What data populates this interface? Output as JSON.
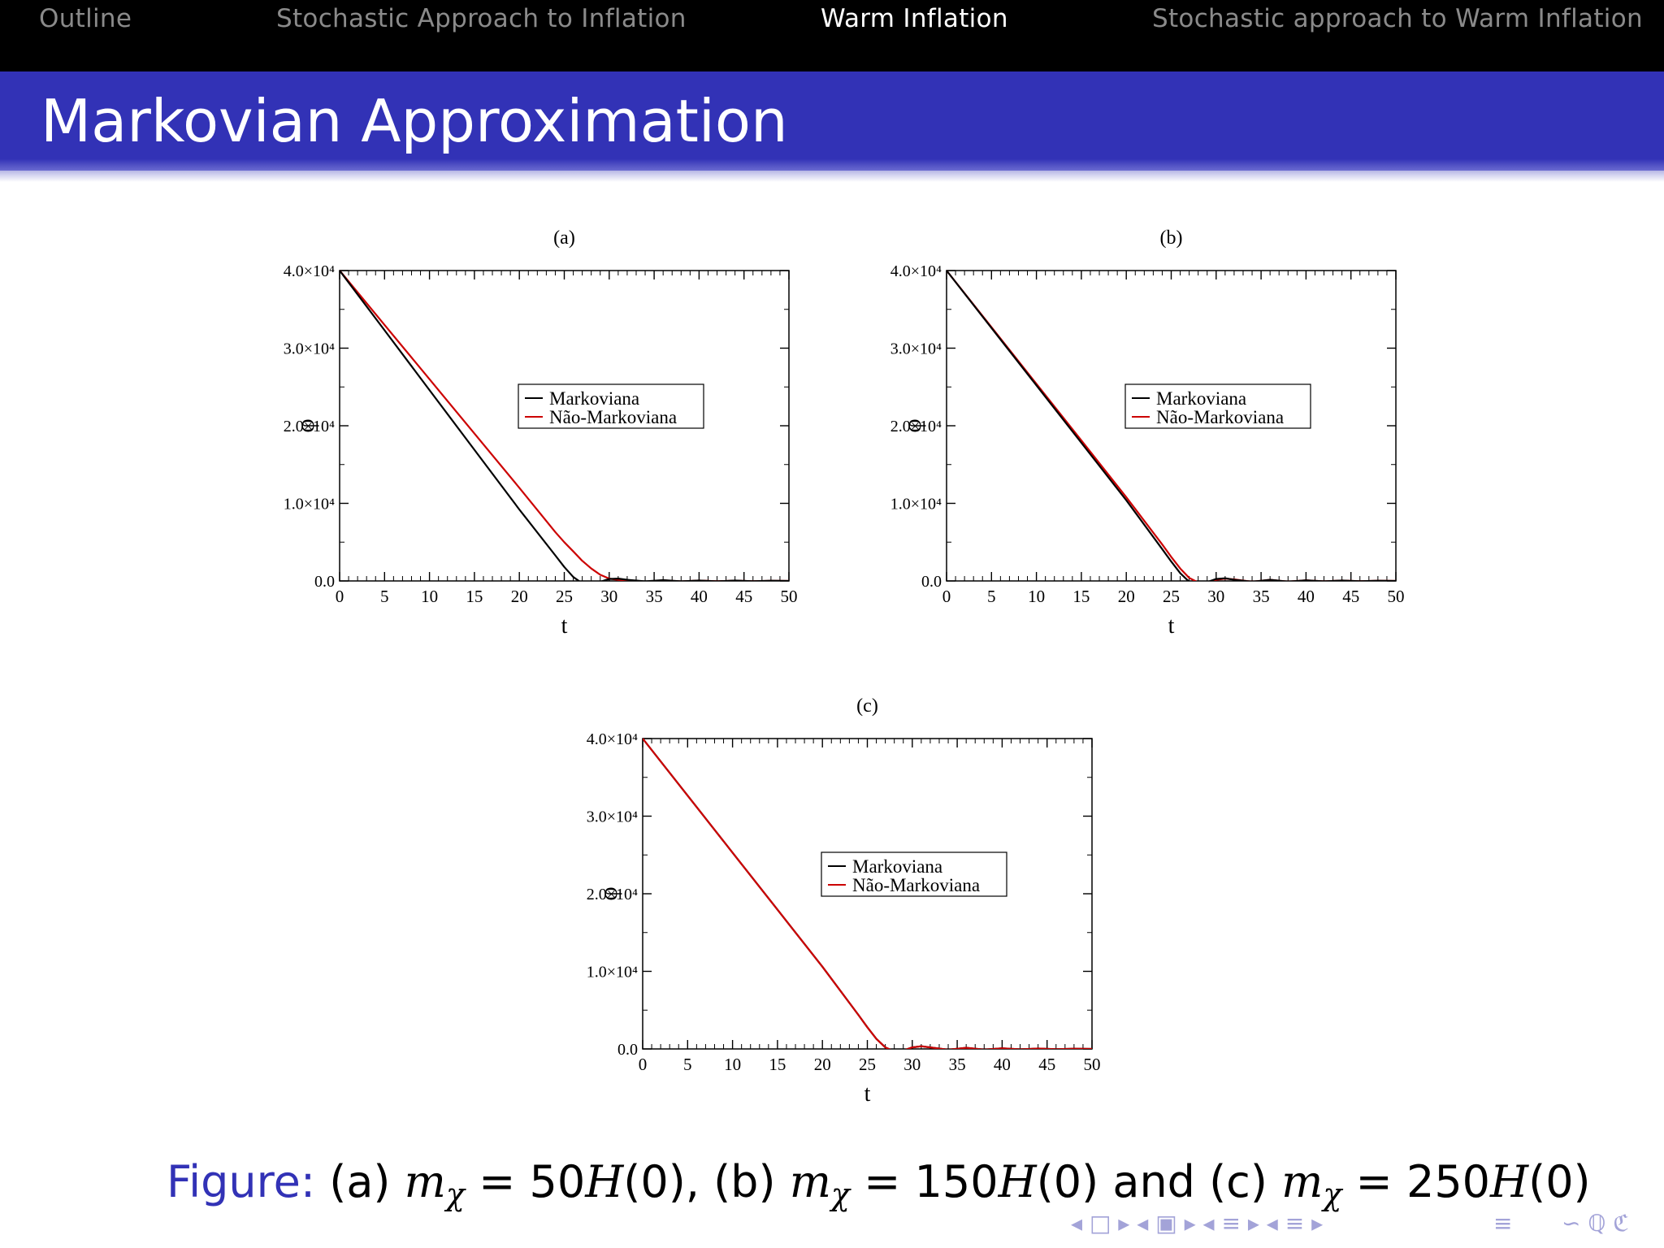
{
  "nav": {
    "items": [
      {
        "label": "Outline",
        "active": false
      },
      {
        "label": "Stochastic Approach to Inflation",
        "active": false
      },
      {
        "label": "Warm Inflation",
        "active": true
      },
      {
        "label": "Stochastic approach to Warm Inflation",
        "active": false
      }
    ]
  },
  "frame_title": "Markovian Approximation",
  "caption": {
    "label": "Figure:",
    "parts": [
      "(a)",
      "= 50",
      "(0), (b)",
      "= 150",
      "(0) and (c)",
      "= 250",
      "(0)"
    ],
    "symbol_m": "m",
    "symbol_chi": "χ",
    "symbol_H": "H"
  },
  "beamer_nav_icons": {
    "left": "◂ □ ▸ ◂ ▣ ▸ ◂ ≡ ▸ ◂ ≡ ▸",
    "eq": "≡",
    "right": "∽ ℚ ℭ"
  },
  "chart_data": [
    {
      "type": "line",
      "panel": "(a)",
      "xlabel": "t",
      "ylabel": "φ",
      "xlim": [
        0,
        50
      ],
      "ylim": [
        0,
        40000
      ],
      "xticks": [
        "0",
        "5",
        "10",
        "15",
        "20",
        "25",
        "30",
        "35",
        "40",
        "45",
        "50"
      ],
      "yticks": [
        "0.0",
        "1.0×10⁴",
        "2.0×10⁴",
        "3.0×10⁴",
        "4.0×10⁴"
      ],
      "legend": {
        "position": "center-right",
        "entries": [
          "Markoviana",
          "Não-Markoviana"
        ]
      },
      "series": [
        {
          "name": "Markoviana",
          "color": "#000000",
          "x": [
            0,
            5,
            10,
            15,
            20,
            24,
            25,
            26,
            27,
            28,
            29,
            30,
            31,
            32,
            34,
            36,
            38,
            40,
            42,
            44,
            46,
            48,
            50
          ],
          "y": [
            40000,
            32300,
            24600,
            16900,
            9200,
            3300,
            1800,
            500,
            -300,
            -350,
            -100,
            250,
            300,
            150,
            -50,
            100,
            -50,
            50,
            -50,
            50,
            -30,
            30,
            0
          ]
        },
        {
          "name": "Não-Markoviana",
          "color": "#cc0000",
          "x": [
            0,
            5,
            10,
            15,
            20,
            24,
            25,
            26,
            27,
            28,
            29,
            30,
            31,
            32,
            34,
            36,
            38,
            40,
            42,
            44,
            46,
            48,
            50
          ],
          "y": [
            40000,
            33000,
            26000,
            19000,
            12000,
            6300,
            5000,
            3800,
            2600,
            1600,
            800,
            300,
            150,
            50,
            -100,
            80,
            -60,
            50,
            -40,
            40,
            -30,
            20,
            0
          ]
        }
      ]
    },
    {
      "type": "line",
      "panel": "(b)",
      "xlabel": "t",
      "ylabel": "φ",
      "xlim": [
        0,
        50
      ],
      "ylim": [
        0,
        40000
      ],
      "xticks": [
        "0",
        "5",
        "10",
        "15",
        "20",
        "25",
        "30",
        "35",
        "40",
        "45",
        "50"
      ],
      "yticks": [
        "0.0",
        "1.0×10⁴",
        "2.0×10⁴",
        "3.0×10⁴",
        "4.0×10⁴"
      ],
      "legend": {
        "position": "center-right",
        "entries": [
          "Markoviana",
          "Não-Markoviana"
        ]
      },
      "series": [
        {
          "name": "Markoviana",
          "color": "#000000",
          "x": [
            0,
            5,
            10,
            15,
            20,
            24,
            25,
            26,
            27,
            28,
            29,
            30,
            31,
            32,
            34,
            36,
            38,
            40,
            42,
            44,
            46,
            48,
            50
          ],
          "y": [
            40000,
            32600,
            25200,
            17800,
            10400,
            4100,
            2500,
            1000,
            -100,
            -400,
            -150,
            250,
            350,
            150,
            -100,
            150,
            -80,
            80,
            -50,
            50,
            -30,
            30,
            0
          ]
        },
        {
          "name": "Não-Markoviana",
          "color": "#cc0000",
          "x": [
            0,
            5,
            10,
            15,
            20,
            24,
            25,
            26,
            27,
            28,
            29,
            30,
            31,
            32,
            34,
            36,
            38,
            40,
            42,
            44,
            46,
            48,
            50
          ],
          "y": [
            40000,
            32700,
            25400,
            18100,
            10800,
            4700,
            3100,
            1600,
            400,
            -200,
            -200,
            150,
            300,
            200,
            -100,
            150,
            -80,
            80,
            -50,
            50,
            -30,
            30,
            0
          ]
        }
      ]
    },
    {
      "type": "line",
      "panel": "(c)",
      "xlabel": "t",
      "ylabel": "φ",
      "xlim": [
        0,
        50
      ],
      "ylim": [
        0,
        40000
      ],
      "xticks": [
        "0",
        "5",
        "10",
        "15",
        "20",
        "25",
        "30",
        "35",
        "40",
        "45",
        "50"
      ],
      "yticks": [
        "0.0",
        "1.0×10⁴",
        "2.0×10⁴",
        "3.0×10⁴",
        "4.0×10⁴"
      ],
      "legend": {
        "position": "center-right",
        "entries": [
          "Markoviana",
          "Não-Markoviana"
        ]
      },
      "series": [
        {
          "name": "Markoviana",
          "color": "#000000",
          "x": [
            0,
            5,
            10,
            15,
            20,
            24,
            25,
            26,
            27,
            28,
            29,
            30,
            31,
            32,
            34,
            36,
            38,
            40,
            42,
            44,
            46,
            48,
            50
          ],
          "y": [
            40000,
            32650,
            25300,
            17950,
            10600,
            4400,
            2800,
            1300,
            200,
            -300,
            -200,
            200,
            350,
            200,
            -100,
            150,
            -80,
            80,
            -50,
            50,
            -30,
            30,
            0
          ]
        },
        {
          "name": "Não-Markoviana",
          "color": "#cc0000",
          "x": [
            0,
            5,
            10,
            15,
            20,
            24,
            25,
            26,
            27,
            28,
            29,
            30,
            31,
            32,
            34,
            36,
            38,
            40,
            42,
            44,
            46,
            48,
            50
          ],
          "y": [
            40000,
            32650,
            25300,
            17950,
            10600,
            4400,
            2800,
            1300,
            200,
            -300,
            -200,
            200,
            350,
            200,
            -100,
            150,
            -80,
            80,
            -50,
            50,
            -30,
            30,
            0
          ]
        }
      ]
    }
  ]
}
